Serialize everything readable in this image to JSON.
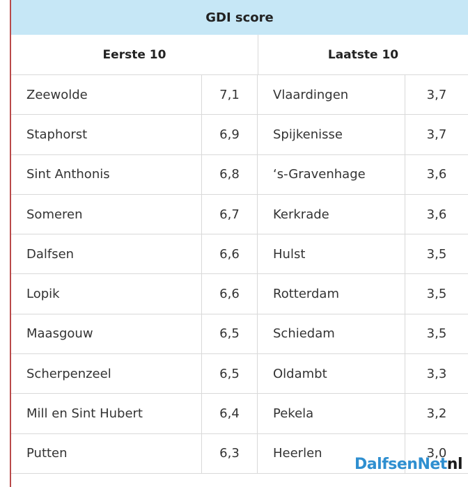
{
  "title": "GDI score",
  "headers": {
    "left": "Eerste 10",
    "right": "Laatste 10"
  },
  "rows": [
    {
      "left_name": "Zeewolde",
      "left_score": "7,1",
      "right_name": "Vlaardingen",
      "right_score": "3,7"
    },
    {
      "left_name": "Staphorst",
      "left_score": "6,9",
      "right_name": "Spijkenisse",
      "right_score": "3,7"
    },
    {
      "left_name": "Sint Anthonis",
      "left_score": "6,8",
      "right_name": "‘s-Gravenhage",
      "right_score": "3,6"
    },
    {
      "left_name": "Someren",
      "left_score": "6,7",
      "right_name": "Kerkrade",
      "right_score": "3,6"
    },
    {
      "left_name": "Dalfsen",
      "left_score": "6,6",
      "right_name": "Hulst",
      "right_score": "3,5"
    },
    {
      "left_name": "Lopik",
      "left_score": "6,6",
      "right_name": "Rotterdam",
      "right_score": "3,5"
    },
    {
      "left_name": "Maasgouw",
      "left_score": "6,5",
      "right_name": "Schiedam",
      "right_score": "3,5"
    },
    {
      "left_name": "Scherpenzeel",
      "left_score": "6,5",
      "right_name": "Oldambt",
      "right_score": "3,3"
    },
    {
      "left_name": "Mill en Sint Hubert",
      "left_score": "6,4",
      "right_name": "Pekela",
      "right_score": "3,2"
    },
    {
      "left_name": "Putten",
      "left_score": "6,3",
      "right_name": "Heerlen",
      "right_score": "3,0"
    }
  ],
  "watermark": {
    "main": "DalfsenNet",
    "tld": "nl"
  },
  "colors": {
    "title_bg": "#c6e7f6",
    "accent_border": "#b94a4a",
    "watermark_blue": "#2f8fd0"
  }
}
